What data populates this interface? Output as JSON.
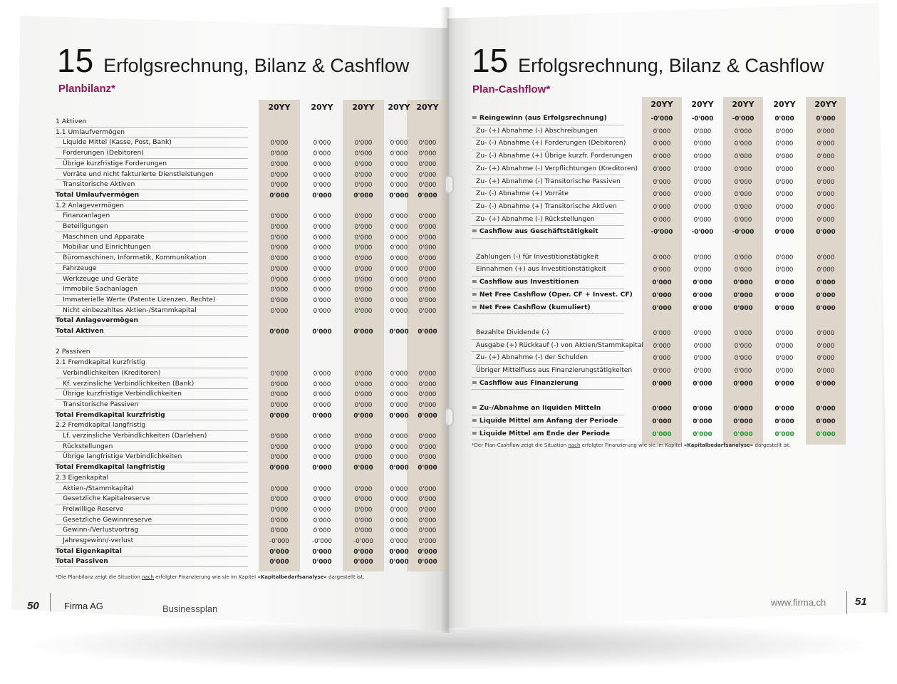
{
  "left_page": {
    "chapter_number": "15",
    "chapter_title": "Erfolgsrechnung, Bilanz & Cashflow",
    "subtitle": "Planbilanz*",
    "columns": [
      "20YY",
      "20YY",
      "20YY",
      "20YY",
      "20YY"
    ],
    "rows": [
      {
        "label": "1 Aktiven",
        "indent": 0,
        "bold": false,
        "values": []
      },
      {
        "label": "1.1 Umlaufvermögen",
        "indent": 0,
        "bold": false,
        "values": []
      },
      {
        "label": "Liquide Mittel (Kasse, Post, Bank)",
        "indent": 1,
        "bold": false,
        "values": [
          "0'000",
          "0'000",
          "0'000",
          "0'000",
          "0'000"
        ]
      },
      {
        "label": "Forderungen (Debitoren)",
        "indent": 1,
        "bold": false,
        "values": [
          "0'000",
          "0'000",
          "0'000",
          "0'000",
          "0'000"
        ]
      },
      {
        "label": "Übrige kurzfristige Forderungen",
        "indent": 1,
        "bold": false,
        "values": [
          "0'000",
          "0'000",
          "0'000",
          "0'000",
          "0'000"
        ]
      },
      {
        "label": "Vorräte und nicht fakturierte Dienstleistungen",
        "indent": 1,
        "bold": false,
        "values": [
          "0'000",
          "0'000",
          "0'000",
          "0'000",
          "0'000"
        ]
      },
      {
        "label": "Transitorische Aktiven",
        "indent": 1,
        "bold": false,
        "values": [
          "0'000",
          "0'000",
          "0'000",
          "0'000",
          "0'000"
        ]
      },
      {
        "label": "Total Umlaufvermögen",
        "indent": 0,
        "bold": true,
        "values": [
          "0'000",
          "0'000",
          "0'000",
          "0'000",
          "0'000"
        ]
      },
      {
        "label": "1.2 Anlagevermögen",
        "indent": 0,
        "bold": false,
        "values": []
      },
      {
        "label": "Finanzanlagen",
        "indent": 1,
        "bold": false,
        "values": [
          "0'000",
          "0'000",
          "0'000",
          "0'000",
          "0'000"
        ]
      },
      {
        "label": "Beteiligungen",
        "indent": 1,
        "bold": false,
        "values": [
          "0'000",
          "0'000",
          "0'000",
          "0'000",
          "0'000"
        ]
      },
      {
        "label": "Maschinen und Apparate",
        "indent": 1,
        "bold": false,
        "values": [
          "0'000",
          "0'000",
          "0'000",
          "0'000",
          "0'000"
        ]
      },
      {
        "label": "Mobiliar und Einrichtungen",
        "indent": 1,
        "bold": false,
        "values": [
          "0'000",
          "0'000",
          "0'000",
          "0'000",
          "0'000"
        ]
      },
      {
        "label": "Büromaschinen, Informatik, Kommunikation",
        "indent": 1,
        "bold": false,
        "values": [
          "0'000",
          "0'000",
          "0'000",
          "0'000",
          "0'000"
        ]
      },
      {
        "label": "Fahrzeuge",
        "indent": 1,
        "bold": false,
        "values": [
          "0'000",
          "0'000",
          "0'000",
          "0'000",
          "0'000"
        ]
      },
      {
        "label": "Werkzeuge und Geräte",
        "indent": 1,
        "bold": false,
        "values": [
          "0'000",
          "0'000",
          "0'000",
          "0'000",
          "0'000"
        ]
      },
      {
        "label": "Immobile Sachanlagen",
        "indent": 1,
        "bold": false,
        "values": [
          "0'000",
          "0'000",
          "0'000",
          "0'000",
          "0'000"
        ]
      },
      {
        "label": "Immaterielle Werte (Patente Lizenzen, Rechte)",
        "indent": 1,
        "bold": false,
        "values": [
          "0'000",
          "0'000",
          "0'000",
          "0'000",
          "0'000"
        ]
      },
      {
        "label": "Nicht einbezahltes Aktien-/Stammkapital",
        "indent": 1,
        "bold": false,
        "values": [
          "0'000",
          "0'000",
          "0'000",
          "0'000",
          "0'000"
        ]
      },
      {
        "label": "Total Anlagevermögen",
        "indent": 0,
        "bold": true,
        "values": []
      },
      {
        "label": "Total Aktiven",
        "indent": 0,
        "bold": true,
        "values": [
          "0'000",
          "0'000",
          "0'000",
          "0'000",
          "0'000"
        ]
      },
      {
        "label": "",
        "indent": 0,
        "bold": false,
        "values": []
      },
      {
        "label": "2 Passiven",
        "indent": 0,
        "bold": false,
        "values": []
      },
      {
        "label": "2.1 Fremdkapital kurzfristig",
        "indent": 0,
        "bold": false,
        "values": []
      },
      {
        "label": "Verbindlichkeiten (Kreditoren)",
        "indent": 1,
        "bold": false,
        "values": [
          "0'000",
          "0'000",
          "0'000",
          "0'000",
          "0'000"
        ]
      },
      {
        "label": "Kf. verzinsliche Verbindlichkeiten (Bank)",
        "indent": 1,
        "bold": false,
        "values": [
          "0'000",
          "0'000",
          "0'000",
          "0'000",
          "0'000"
        ]
      },
      {
        "label": "Übrige kurzfristige Verbindlichkeiten",
        "indent": 1,
        "bold": false,
        "values": [
          "0'000",
          "0'000",
          "0'000",
          "0'000",
          "0'000"
        ]
      },
      {
        "label": "Transitorische Passiven",
        "indent": 1,
        "bold": false,
        "values": [
          "0'000",
          "0'000",
          "0'000",
          "0'000",
          "0'000"
        ]
      },
      {
        "label": "Total Fremdkapital kurzfristig",
        "indent": 0,
        "bold": true,
        "values": [
          "0'000",
          "0'000",
          "0'000",
          "0'000",
          "0'000"
        ]
      },
      {
        "label": "2.2 Fremdkapital langfristig",
        "indent": 0,
        "bold": false,
        "values": []
      },
      {
        "label": "Lf. verzinsliche Verbindlichkeiten (Darlehen)",
        "indent": 1,
        "bold": false,
        "values": [
          "0'000",
          "0'000",
          "0'000",
          "0'000",
          "0'000"
        ]
      },
      {
        "label": "Rückstellungen",
        "indent": 1,
        "bold": false,
        "values": [
          "0'000",
          "0'000",
          "0'000",
          "0'000",
          "0'000"
        ]
      },
      {
        "label": "Übrige langfristige Verbindlichkeiten",
        "indent": 1,
        "bold": false,
        "values": [
          "0'000",
          "0'000",
          "0'000",
          "0'000",
          "0'000"
        ]
      },
      {
        "label": "Total Fremdkapital langfristig",
        "indent": 0,
        "bold": true,
        "values": [
          "0'000",
          "0'000",
          "0'000",
          "0'000",
          "0'000"
        ]
      },
      {
        "label": "2.3 Eigenkapital",
        "indent": 0,
        "bold": false,
        "values": []
      },
      {
        "label": "Aktien-/Stammkapital",
        "indent": 1,
        "bold": false,
        "values": [
          "0'000",
          "0'000",
          "0'000",
          "0'000",
          "0'000"
        ]
      },
      {
        "label": "Gesetzliche Kapitalreserve",
        "indent": 1,
        "bold": false,
        "values": [
          "0'000",
          "0'000",
          "0'000",
          "0'000",
          "0'000"
        ]
      },
      {
        "label": "Freiwillige Reserve",
        "indent": 1,
        "bold": false,
        "values": [
          "0'000",
          "0'000",
          "0'000",
          "0'000",
          "0'000"
        ]
      },
      {
        "label": "Gesetzliche Gewinnreserve",
        "indent": 1,
        "bold": false,
        "values": [
          "0'000",
          "0'000",
          "0'000",
          "0'000",
          "0'000"
        ]
      },
      {
        "label": "Gewinn-/Verlustvortrag",
        "indent": 1,
        "bold": false,
        "values": [
          "0'000",
          "0'000",
          "0'000",
          "0'000",
          "0'000"
        ]
      },
      {
        "label": "Jahresgewinn/-verlust",
        "indent": 1,
        "bold": false,
        "values": [
          "-0'000",
          "-0'000",
          "-0'000",
          "0'000",
          "0'000"
        ]
      },
      {
        "label": "Total Eigenkapital",
        "indent": 0,
        "bold": true,
        "values": [
          "0'000",
          "0'000",
          "0'000",
          "0'000",
          "0'000"
        ]
      },
      {
        "label": "Total Passiven",
        "indent": 0,
        "bold": true,
        "values": [
          "0'000",
          "0'000",
          "0'000",
          "0'000",
          "0'000"
        ]
      }
    ],
    "note_prefix": "*Die Planbilanz zeigt die Situation ",
    "note_underlined": "nach",
    "note_middle": " erfolgter Finanzierung wie sie im Kapitel ",
    "note_bold": "«Kapitalbedarfsanalyse»",
    "note_suffix": " dargestellt ist.",
    "page_number": "50",
    "company": "Firma AG",
    "doc_title": "Businessplan"
  },
  "right_page": {
    "chapter_number": "15",
    "chapter_title": "Erfolgsrechnung, Bilanz & Cashflow",
    "subtitle": "Plan-Cashflow*",
    "columns": [
      "20YY",
      "20YY",
      "20YY",
      "20YY",
      "20YY"
    ],
    "rows": [
      {
        "label": "= Reingewinn (aus Erfolgsrechnung)",
        "indent": 0,
        "bold": true,
        "values": [
          "-0'000",
          "-0'000",
          "-0'000",
          "0'000",
          "0'000"
        ]
      },
      {
        "label": "Zu- (+) Abnahme (-) Abschreibungen",
        "indent": 1,
        "bold": false,
        "values": [
          "0'000",
          "0'000",
          "0'000",
          "0'000",
          "0'000"
        ]
      },
      {
        "label": "Zu- (-) Abnahme (+) Forderungen (Debitoren)",
        "indent": 1,
        "bold": false,
        "values": [
          "0'000",
          "0'000",
          "0'000",
          "0'000",
          "0'000"
        ]
      },
      {
        "label": "Zu- (-) Abnahme (+) Übrige kurzfr. Forderungen",
        "indent": 1,
        "bold": false,
        "values": [
          "0'000",
          "0'000",
          "0'000",
          "0'000",
          "0'000"
        ]
      },
      {
        "label": "Zu- (+) Abnahme (-) Verpflichtungen (Kreditoren)",
        "indent": 1,
        "bold": false,
        "values": [
          "0'000",
          "0'000",
          "0'000",
          "0'000",
          "0'000"
        ]
      },
      {
        "label": "Zu- (+) Abnahme (-) Transitorische Passiven",
        "indent": 1,
        "bold": false,
        "values": [
          "0'000",
          "0'000",
          "0'000",
          "0'000",
          "0'000"
        ]
      },
      {
        "label": "Zu- (-) Abnahme (+) Vorräte",
        "indent": 1,
        "bold": false,
        "values": [
          "0'000",
          "0'000",
          "0'000",
          "0'000",
          "0'000"
        ]
      },
      {
        "label": "Zu- (-) Abnahme (+) Transitorische Aktiven",
        "indent": 1,
        "bold": false,
        "values": [
          "0'000",
          "0'000",
          "0'000",
          "0'000",
          "0'000"
        ]
      },
      {
        "label": "Zu- (+) Abnahme (-) Rückstellungen",
        "indent": 1,
        "bold": false,
        "values": [
          "0'000",
          "0'000",
          "0'000",
          "0'000",
          "0'000"
        ]
      },
      {
        "label": "= Cashflow aus Geschäftstätigkeit",
        "indent": 0,
        "bold": true,
        "values": [
          "-0'000",
          "-0'000",
          "-0'000",
          "0'000",
          "0'000"
        ]
      },
      {
        "label": "",
        "indent": 0,
        "bold": false,
        "values": []
      },
      {
        "label": "Zahlungen (-) für Investitionstätigkeit",
        "indent": 1,
        "bold": false,
        "values": [
          "0'000",
          "0'000",
          "0'000",
          "0'000",
          "0'000"
        ]
      },
      {
        "label": "Einnahmen (+) aus Investitionstätigkeit",
        "indent": 1,
        "bold": false,
        "values": [
          "0'000",
          "0'000",
          "0'000",
          "0'000",
          "0'000"
        ]
      },
      {
        "label": "= Cashflow aus Investitionen",
        "indent": 0,
        "bold": true,
        "values": [
          "0'000",
          "0'000",
          "0'000",
          "0'000",
          "0'000"
        ]
      },
      {
        "label": "= Net Free Cashflow (Oper. CF + Invest. CF)",
        "indent": 0,
        "bold": true,
        "values": [
          "0'000",
          "0'000",
          "0'000",
          "0'000",
          "0'000"
        ]
      },
      {
        "label": "= Net Free Cashflow (kumuliert)",
        "indent": 0,
        "bold": true,
        "values": [
          "0'000",
          "0'000",
          "0'000",
          "0'000",
          "0'000"
        ]
      },
      {
        "label": "",
        "indent": 0,
        "bold": false,
        "values": []
      },
      {
        "label": "Bezahlte Dividende (-)",
        "indent": 1,
        "bold": false,
        "values": [
          "0'000",
          "0'000",
          "0'000",
          "0'000",
          "0'000"
        ]
      },
      {
        "label": "Ausgabe (+) Rückkauf (-) von Aktien/Stammkapital",
        "indent": 1,
        "bold": false,
        "values": [
          "0'000",
          "0'000",
          "0'000",
          "0'000",
          "0'000"
        ]
      },
      {
        "label": "Zu- (+) Abnahme (-) der Schulden",
        "indent": 1,
        "bold": false,
        "values": [
          "0'000",
          "0'000",
          "0'000",
          "0'000",
          "0'000"
        ]
      },
      {
        "label": "Übriger Mittelfluss aus Finanzierungstätigkeiten",
        "indent": 1,
        "bold": false,
        "values": [
          "0'000",
          "0'000",
          "0'000",
          "0'000",
          "0'000"
        ]
      },
      {
        "label": "= Cashflow aus Finanzierung",
        "indent": 0,
        "bold": true,
        "values": [
          "0'000",
          "0'000",
          "0'000",
          "0'000",
          "0'000"
        ]
      },
      {
        "label": "",
        "indent": 0,
        "bold": false,
        "values": []
      },
      {
        "label": "= Zu-/Abnahme an liquiden Mitteln",
        "indent": 0,
        "bold": true,
        "values": [
          "0'000",
          "0'000",
          "0'000",
          "0'000",
          "0'000"
        ]
      },
      {
        "label": "= Liquide Mittel am Anfang der Periode",
        "indent": 0,
        "bold": true,
        "values": [
          "0'000",
          "0'000",
          "0'000",
          "0'000",
          "0'000"
        ]
      },
      {
        "label": "= Liquide Mittel am Ende der Periode",
        "indent": 0,
        "bold": true,
        "green": true,
        "values": [
          "0'000",
          "0'000",
          "0'000",
          "0'000",
          "0'000"
        ]
      }
    ],
    "note_prefix": "*Der Plan-Cashflow zeigt die Situation ",
    "note_underlined": "nach",
    "note_middle": " erfolgter Finanzierung wie sie im Kapitel ",
    "note_bold": "«Kapitalbedarfsanalyse»",
    "note_suffix": " dargestellt ist.",
    "website": "www.firma.ch",
    "page_number": "51"
  },
  "colors": {
    "accent": "#8b1b55",
    "column_shade": "#ddd6cb",
    "positive_green": "#1e9a2e"
  }
}
